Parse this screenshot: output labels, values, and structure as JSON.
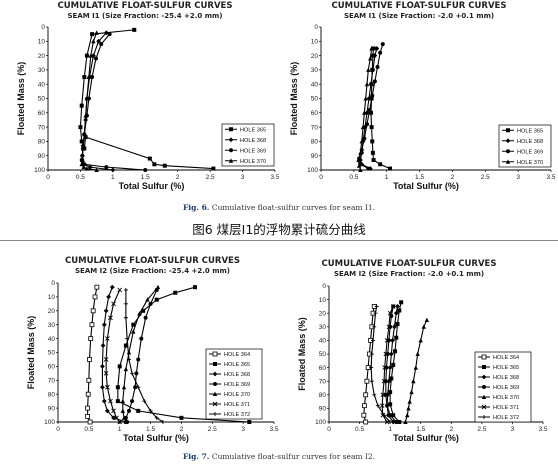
{
  "figure6": {
    "caption_label": "Fig. 6.",
    "caption_text": "Cumulative float-sulfur curves for seam I1."
  },
  "figure7": {
    "caption_label": "Fig. 7.",
    "caption_text": "Cumulative float-sulfur curves for seam I2."
  },
  "chinese_caption": "图6 煤层I1的浮物累计硫分曲线",
  "chart_data": [
    {
      "type": "line",
      "title": "CUMULATIVE FLOAT-SULFUR CURVES",
      "subtitle": "SEAM I1 (Size Fraction: -25.4 +2.0 mm)",
      "xlabel": "Total Sulfur (%)",
      "ylabel": "Floated Mass (%)",
      "xlim": [
        0,
        3.5
      ],
      "ylim": [
        100,
        0
      ],
      "xticks": [
        "0",
        "0.5",
        "1",
        "1.5",
        "2",
        "2.5",
        "3",
        "3.5"
      ],
      "yticks": [
        "0",
        "10",
        "20",
        "30",
        "40",
        "50",
        "60",
        "70",
        "80",
        "90",
        "100"
      ],
      "grid": false,
      "legend": "bottom-right",
      "series": [
        {
          "name": "HOLE 365",
          "marker": "square",
          "x": [
            1.33,
            0.68,
            0.6,
            0.56,
            0.52,
            0.5,
            0.52,
            0.56,
            0.58,
            1.57,
            1.64,
            1.8,
            2.55
          ],
          "y": [
            2,
            5,
            20,
            35,
            55,
            70,
            80,
            85,
            77,
            92,
            96,
            97,
            99
          ]
        },
        {
          "name": "HOLE 368",
          "marker": "diamond",
          "x": [
            0.9,
            0.78,
            0.7,
            0.64,
            0.6,
            0.58,
            0.56,
            0.54,
            0.53,
            0.53,
            0.55,
            0.65,
            1.0
          ],
          "y": [
            4,
            10,
            20,
            35,
            50,
            65,
            75,
            83,
            90,
            94,
            96,
            98,
            100
          ]
        },
        {
          "name": "HOLE 369",
          "marker": "circle",
          "x": [
            0.95,
            0.82,
            0.74,
            0.68,
            0.63,
            0.6,
            0.56,
            0.54,
            0.53,
            0.52,
            0.56,
            0.9,
            1.5
          ],
          "y": [
            5,
            12,
            22,
            35,
            50,
            62,
            75,
            85,
            90,
            93,
            96,
            98,
            100
          ]
        },
        {
          "name": "HOLE 370",
          "marker": "triangle",
          "x": [
            0.75,
            0.7,
            0.66,
            0.63,
            0.6,
            0.58,
            0.56,
            0.54,
            0.53,
            0.52,
            0.55,
            0.6,
            0.75
          ],
          "y": [
            4,
            10,
            20,
            35,
            50,
            62,
            75,
            85,
            92,
            96,
            98,
            99,
            100
          ]
        }
      ]
    },
    {
      "type": "line",
      "title": "CUMULATIVE FLOAT-SULFUR CURVES",
      "subtitle": "SEAM I1 (Size Fraction: -2.0 +0.1 mm)",
      "xlabel": "Total Sulfur (%)",
      "ylabel": "Floated Mass (%)",
      "xlim": [
        0,
        3.5
      ],
      "ylim": [
        100,
        0
      ],
      "xticks": [
        "0",
        "0.5",
        "1",
        "1.5",
        "2",
        "2.5",
        "3",
        "3.5"
      ],
      "yticks": [
        "0",
        "10",
        "20",
        "30",
        "40",
        "50",
        "60",
        "70",
        "80",
        "90",
        "100"
      ],
      "grid": false,
      "legend": "bottom-right",
      "series": [
        {
          "name": "HOLE 365",
          "marker": "square",
          "x": [
            0.8,
            0.79,
            0.78,
            0.77,
            0.77,
            0.76,
            0.77,
            0.78,
            0.79,
            0.8,
            0.9,
            1.05
          ],
          "y": [
            15,
            20,
            30,
            40,
            50,
            60,
            70,
            80,
            88,
            93,
            96,
            99
          ]
        },
        {
          "name": "HOLE 368",
          "marker": "diamond",
          "x": [
            0.85,
            0.82,
            0.79,
            0.76,
            0.73,
            0.7,
            0.67,
            0.64,
            0.62,
            0.6,
            0.62,
            0.75
          ],
          "y": [
            15,
            20,
            30,
            40,
            50,
            60,
            70,
            80,
            88,
            93,
            96,
            99
          ]
        },
        {
          "name": "HOLE 369",
          "marker": "circle",
          "x": [
            0.94,
            0.9,
            0.86,
            0.82,
            0.78,
            0.74,
            0.7,
            0.66,
            0.62,
            0.58,
            0.6,
            0.72
          ],
          "y": [
            12,
            18,
            28,
            38,
            48,
            58,
            68,
            78,
            86,
            92,
            96,
            99
          ]
        },
        {
          "name": "HOLE 370",
          "marker": "triangle",
          "x": [
            0.77,
            0.75,
            0.72,
            0.7,
            0.68,
            0.66,
            0.64,
            0.62,
            0.6,
            0.57,
            0.58,
            0.6
          ],
          "y": [
            15,
            22,
            30,
            40,
            50,
            60,
            70,
            80,
            88,
            93,
            97,
            100
          ]
        }
      ]
    },
    {
      "type": "line",
      "title": "CUMULATIVE FLOAT-SULFUR CURVES",
      "subtitle": "SEAM I2 (Size Fraction: -25.4 +2.0 mm)",
      "xlabel": "Total Sulfur (%)",
      "ylabel": "Floated Mass (%)",
      "xlim": [
        0,
        3.5
      ],
      "ylim": [
        100,
        0
      ],
      "xticks": [
        "0",
        "0.5",
        "1",
        "1.5",
        "2",
        "2.5",
        "3",
        "3.5"
      ],
      "yticks": [
        "0",
        "10",
        "20",
        "30",
        "40",
        "50",
        "60",
        "70",
        "80",
        "90",
        "100"
      ],
      "grid": false,
      "legend": "bottom-right",
      "series": [
        {
          "name": "HOLE 364",
          "marker": "square-open",
          "x": [
            0.63,
            0.6,
            0.57,
            0.55,
            0.53,
            0.51,
            0.5,
            0.49,
            0.48,
            0.48,
            0.52
          ],
          "y": [
            3,
            10,
            20,
            30,
            40,
            55,
            70,
            80,
            90,
            96,
            100
          ]
        },
        {
          "name": "HOLE 365",
          "marker": "square",
          "x": [
            2.22,
            1.9,
            1.6,
            1.38,
            1.22,
            1.1,
            1.0,
            0.97,
            0.97,
            1.3,
            2.0,
            3.1
          ],
          "y": [
            3,
            7,
            12,
            20,
            30,
            45,
            60,
            75,
            85,
            92,
            97,
            100
          ]
        },
        {
          "name": "HOLE 368",
          "marker": "diamond",
          "x": [
            0.88,
            0.82,
            0.78,
            0.75,
            0.73,
            0.72,
            0.72,
            0.75,
            0.8,
            0.9,
            1.1
          ],
          "y": [
            3,
            10,
            20,
            30,
            45,
            60,
            75,
            85,
            92,
            97,
            100
          ]
        },
        {
          "name": "HOLE 369",
          "marker": "circle",
          "x": [
            1.6,
            1.5,
            1.42,
            1.35,
            1.3,
            1.27,
            1.25,
            1.2,
            1.15,
            1.1,
            1.12
          ],
          "y": [
            5,
            15,
            25,
            40,
            55,
            65,
            75,
            85,
            92,
            97,
            100
          ]
        },
        {
          "name": "HOLE 370",
          "marker": "triangle",
          "x": [
            1.62,
            1.45,
            1.32,
            1.22,
            1.15,
            1.1,
            1.07,
            1.05,
            1.05,
            1.07,
            1.1
          ],
          "y": [
            3,
            12,
            22,
            35,
            50,
            62,
            75,
            85,
            92,
            97,
            100
          ]
        },
        {
          "name": "HOLE 371",
          "marker": "x",
          "x": [
            1.0,
            0.9,
            0.85,
            0.8,
            0.78,
            0.78,
            0.8,
            0.85,
            0.9,
            0.95,
            1.0
          ],
          "y": [
            5,
            15,
            25,
            40,
            55,
            65,
            75,
            85,
            92,
            97,
            100
          ]
        },
        {
          "name": "HOLE 372",
          "marker": "plus",
          "x": [
            1.1,
            1.1,
            1.1,
            1.12,
            1.15,
            1.2,
            1.3,
            1.4,
            1.5,
            1.6,
            1.7
          ],
          "y": [
            5,
            15,
            25,
            40,
            55,
            65,
            75,
            85,
            92,
            97,
            100
          ]
        }
      ]
    },
    {
      "type": "line",
      "title": "CUMULATIVE FLOAT-SULFUR CURVES",
      "subtitle": "SEAM I2 (Size Fraction: -2.0 +0.1 mm)",
      "xlabel": "Total Sulfur (%)",
      "ylabel": "Floated Mass (%)",
      "xlim": [
        0,
        3.5
      ],
      "ylim": [
        100,
        0
      ],
      "xticks": [
        "0",
        "0.5",
        "1",
        "1.5",
        "2",
        "2.5",
        "3",
        "3.5"
      ],
      "yticks": [
        "0",
        "10",
        "20",
        "30",
        "40",
        "50",
        "60",
        "70",
        "80",
        "90",
        "100"
      ],
      "grid": false,
      "legend": "bottom-right",
      "series": [
        {
          "name": "HOLE 364",
          "marker": "square-open",
          "x": [
            0.74,
            0.72,
            0.7,
            0.68,
            0.66,
            0.64,
            0.62,
            0.6,
            0.58,
            0.57,
            0.6
          ],
          "y": [
            15,
            20,
            30,
            40,
            50,
            60,
            70,
            80,
            88,
            95,
            100
          ]
        },
        {
          "name": "HOLE 365",
          "marker": "square",
          "x": [
            1.18,
            1.15,
            1.12,
            1.1,
            1.08,
            1.05,
            1.02,
            1.0,
            1.0,
            1.05,
            1.15
          ],
          "y": [
            12,
            18,
            28,
            38,
            48,
            58,
            68,
            78,
            87,
            95,
            100
          ]
        },
        {
          "name": "HOLE 368",
          "marker": "diamond",
          "x": [
            1.12,
            1.1,
            1.07,
            1.04,
            1.02,
            1.0,
            0.98,
            0.96,
            0.95,
            0.97,
            1.05
          ],
          "y": [
            15,
            20,
            30,
            40,
            50,
            60,
            70,
            80,
            88,
            95,
            100
          ]
        },
        {
          "name": "HOLE 369",
          "marker": "circle",
          "x": [
            1.05,
            1.02,
            1.0,
            0.98,
            0.96,
            0.94,
            0.93,
            0.93,
            0.95,
            1.0,
            1.1
          ],
          "y": [
            15,
            22,
            30,
            40,
            50,
            60,
            70,
            80,
            88,
            95,
            100
          ]
        },
        {
          "name": "HOLE 370",
          "marker": "triangle",
          "x": [
            1.6,
            1.55,
            1.5,
            1.45,
            1.42,
            1.38,
            1.35,
            1.32,
            1.3,
            1.28,
            1.25
          ],
          "y": [
            25,
            30,
            40,
            50,
            60,
            70,
            78,
            85,
            90,
            95,
            100
          ]
        },
        {
          "name": "HOLE 371",
          "marker": "x",
          "x": [
            1.05,
            1.0,
            0.98,
            0.95,
            0.93,
            0.91,
            0.9,
            0.88,
            0.87,
            0.88,
            0.95
          ],
          "y": [
            15,
            20,
            30,
            40,
            50,
            60,
            70,
            80,
            88,
            95,
            100
          ]
        },
        {
          "name": "HOLE 372",
          "marker": "plus",
          "x": [
            0.78,
            0.76,
            0.74,
            0.72,
            0.7,
            0.69,
            0.7,
            0.74,
            0.8,
            0.9,
            1.0
          ],
          "y": [
            15,
            20,
            30,
            40,
            50,
            60,
            70,
            80,
            88,
            95,
            100
          ]
        }
      ]
    }
  ]
}
